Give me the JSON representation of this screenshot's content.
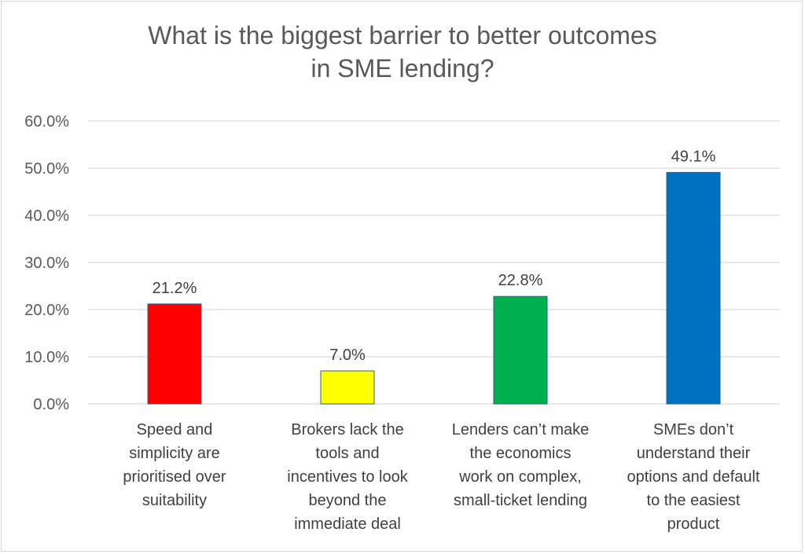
{
  "chart_data": {
    "type": "bar",
    "title_lines": [
      "What is the biggest barrier to better outcomes",
      "in SME lending?"
    ],
    "categories": [
      [
        "Speed and",
        "simplicity are",
        "prioritised over",
        "suitability"
      ],
      [
        "Brokers lack the",
        "tools and",
        "incentives to look",
        "beyond the",
        "immediate deal"
      ],
      [
        "Lenders can’t make",
        "the economics",
        "work on complex,",
        "small-ticket lending"
      ],
      [
        "SMEs don’t",
        "understand their",
        "options and default",
        "to the easiest",
        "product"
      ]
    ],
    "values": [
      21.2,
      7.0,
      22.8,
      49.1
    ],
    "data_labels": [
      "21.2%",
      "7.0%",
      "22.8%",
      "49.1%"
    ],
    "colors": [
      "#ff0000",
      "#ffff00",
      "#00b050",
      "#0070c0"
    ],
    "ylim": [
      0,
      60
    ],
    "yticks": [
      0,
      10,
      20,
      30,
      40,
      50,
      60
    ],
    "ytick_labels": [
      "0.0%",
      "10.0%",
      "20.0%",
      "30.0%",
      "40.0%",
      "50.0%",
      "60.0%"
    ],
    "grid": true,
    "legend": "none",
    "xlabel": "",
    "ylabel": ""
  }
}
